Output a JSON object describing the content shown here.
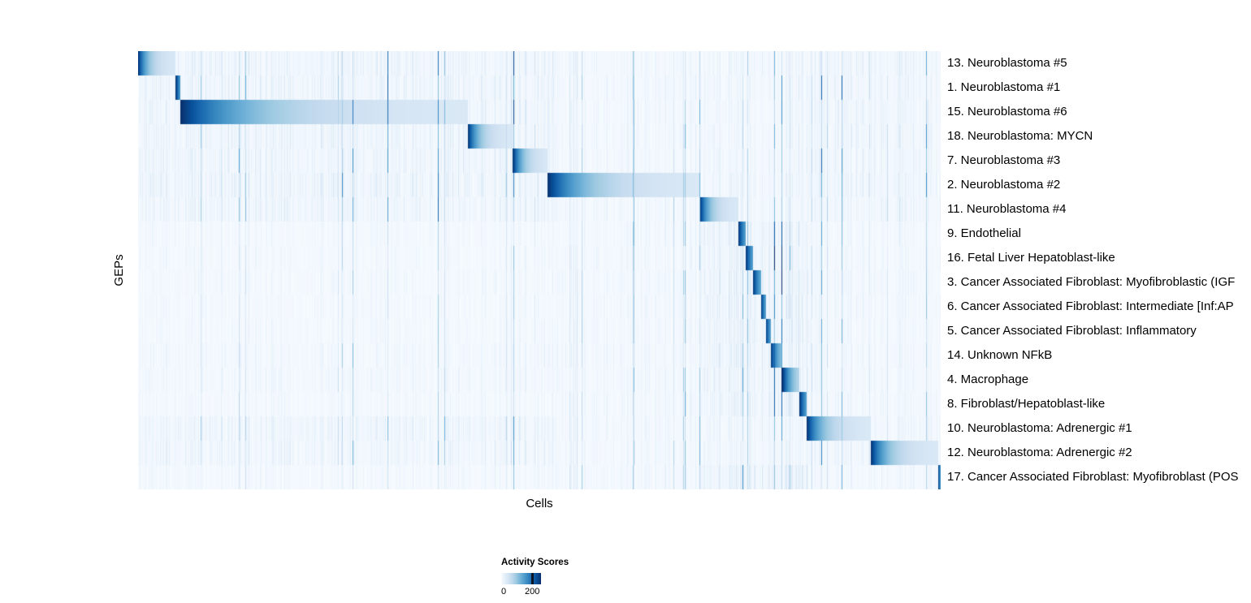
{
  "chart_data": {
    "type": "heatmap",
    "title": "",
    "xlabel": "Cells",
    "ylabel": "GEPs",
    "value_range": [
      0,
      260
    ],
    "grid": false,
    "legend_position": "bottom-left",
    "colormap": [
      "#f7fbff",
      "#deebf7",
      "#c6dbef",
      "#9ecae1",
      "#6baed6",
      "#4292c6",
      "#2171b5",
      "#08519c",
      "#08306b"
    ],
    "colorbar": {
      "title": "Activity Scores",
      "ticks": [
        {
          "label": "0",
          "pos": 0.0,
          "line": false
        },
        {
          "label": "200",
          "pos": 0.78,
          "line": true
        }
      ]
    },
    "rows": [
      {
        "label": "13. Neuroblastoma #5",
        "block": [
          0.0,
          0.047
        ],
        "halos": [
          [
            0.0,
            0.52,
            1.7
          ],
          [
            0.7,
            0.835,
            1.2
          ],
          [
            0.835,
            1.0,
            1.5
          ]
        ]
      },
      {
        "label": "1. Neuroblastoma #1",
        "block": [
          0.047,
          0.053
        ],
        "halos": [
          [
            0.0,
            0.52,
            1.7
          ],
          [
            0.7,
            0.835,
            1.2
          ],
          [
            0.835,
            1.0,
            1.5
          ]
        ]
      },
      {
        "label": "15. Neuroblastoma #6",
        "block": [
          0.053,
          0.411
        ],
        "halos": [
          [
            0.0,
            0.52,
            1.7
          ],
          [
            0.7,
            0.835,
            1.2
          ],
          [
            0.835,
            1.0,
            1.5
          ]
        ]
      },
      {
        "label": "18. Neuroblastoma: MYCN",
        "block": [
          0.411,
          0.467
        ],
        "halos": [
          [
            0.0,
            0.52,
            1.7
          ],
          [
            0.7,
            0.835,
            1.2
          ],
          [
            0.835,
            1.0,
            1.5
          ]
        ]
      },
      {
        "label": "7. Neuroblastoma #3",
        "block": [
          0.467,
          0.51
        ],
        "halos": [
          [
            0.0,
            0.52,
            1.7
          ],
          [
            0.7,
            0.835,
            1.2
          ],
          [
            0.835,
            1.0,
            1.5
          ]
        ]
      },
      {
        "label": "2. Neuroblastoma #2",
        "block": [
          0.51,
          0.7
        ],
        "halos": [
          [
            0.0,
            0.52,
            1.9
          ],
          [
            0.7,
            0.835,
            1.3
          ],
          [
            0.835,
            1.0,
            1.6
          ]
        ]
      },
      {
        "label": "11. Neuroblastoma #4",
        "block": [
          0.7,
          0.748
        ],
        "halos": [
          [
            0.0,
            0.52,
            1.6
          ],
          [
            0.7,
            0.835,
            1.2
          ],
          [
            0.835,
            1.0,
            1.4
          ]
        ]
      },
      {
        "label": "9. Endothelial",
        "block": [
          0.748,
          0.757
        ],
        "halos": [
          [
            0.0,
            0.52,
            0.8
          ],
          [
            0.7,
            0.835,
            2.0
          ]
        ]
      },
      {
        "label": "16. Fetal Liver Hepatoblast-like",
        "block": [
          0.757,
          0.766
        ],
        "halos": [
          [
            0.0,
            0.52,
            0.8
          ],
          [
            0.7,
            0.835,
            2.0
          ]
        ]
      },
      {
        "label": "3. Cancer Associated Fibroblast: Myofibroblastic (IGF",
        "block": [
          0.766,
          0.776
        ],
        "halos": [
          [
            0.0,
            0.52,
            0.8
          ],
          [
            0.7,
            0.835,
            2.0
          ]
        ]
      },
      {
        "label": "6. Cancer Associated Fibroblast: Intermediate [Inf:AP",
        "block": [
          0.776,
          0.782
        ],
        "halos": [
          [
            0.0,
            0.52,
            0.8
          ],
          [
            0.7,
            0.835,
            2.0
          ]
        ]
      },
      {
        "label": "5. Cancer Associated Fibroblast: Inflammatory",
        "block": [
          0.782,
          0.788
        ],
        "halos": [
          [
            0.0,
            0.52,
            0.8
          ],
          [
            0.7,
            0.835,
            2.0
          ]
        ]
      },
      {
        "label": "14. Unknown NFkB",
        "block": [
          0.788,
          0.803
        ],
        "halos": [
          [
            0.0,
            0.52,
            1.0
          ],
          [
            0.7,
            0.835,
            2.0
          ]
        ]
      },
      {
        "label": "4. Macrophage",
        "block": [
          0.803,
          0.824
        ],
        "halos": [
          [
            0.0,
            0.52,
            1.0
          ],
          [
            0.7,
            0.835,
            2.0
          ]
        ]
      },
      {
        "label": "8. Fibroblast/Hepatoblast-like",
        "block": [
          0.824,
          0.833
        ],
        "halos": [
          [
            0.0,
            0.52,
            0.8
          ],
          [
            0.7,
            0.835,
            2.0
          ]
        ]
      },
      {
        "label": "10. Neuroblastoma: Adrenergic #1",
        "block": [
          0.833,
          0.913
        ],
        "halos": [
          [
            0.0,
            0.52,
            1.5
          ],
          [
            0.7,
            0.835,
            1.3
          ],
          [
            0.835,
            1.0,
            1.4
          ]
        ]
      },
      {
        "label": "12. Neuroblastoma: Adrenergic #2",
        "block": [
          0.913,
          0.997
        ],
        "halos": [
          [
            0.0,
            0.52,
            1.4
          ],
          [
            0.7,
            0.835,
            1.3
          ],
          [
            0.835,
            1.0,
            1.3
          ]
        ]
      },
      {
        "label": "17. Cancer Associated Fibroblast: Myofibroblast (POS",
        "block": [
          0.997,
          1.0
        ],
        "halos": [
          [
            0.0,
            0.52,
            0.8
          ],
          [
            0.7,
            0.835,
            2.2
          ]
        ]
      }
    ]
  }
}
